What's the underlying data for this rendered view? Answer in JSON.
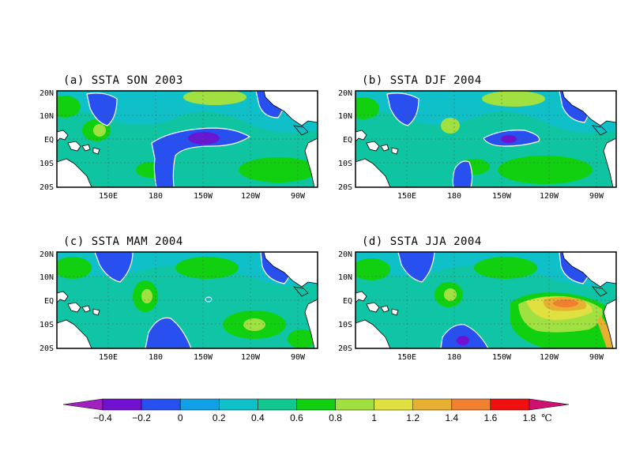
{
  "panels": [
    {
      "title": "(a) SSTA SON 2003",
      "xticks": [
        "150E",
        "180",
        "150W",
        "120W",
        "90W"
      ],
      "yticks": [
        "20N",
        "10N",
        "EQ",
        "10S",
        "20S"
      ]
    },
    {
      "title": "(b) SSTA DJF 2004",
      "xticks": [
        "150E",
        "180",
        "150W",
        "120W",
        "90W"
      ],
      "yticks": [
        "20N",
        "10N",
        "EQ",
        "10S",
        "20S"
      ]
    },
    {
      "title": "(c) SSTA MAM 2004",
      "xticks": [
        "150E",
        "180",
        "150W",
        "120W",
        "90W"
      ],
      "yticks": [
        "20N",
        "10N",
        "EQ",
        "10S",
        "20S"
      ]
    },
    {
      "title": "(d) SSTA JJA 2004",
      "xticks": [
        "150E",
        "180",
        "150W",
        "120W",
        "90W"
      ],
      "yticks": [
        "20N",
        "10N",
        "EQ",
        "10S",
        "20S"
      ]
    }
  ],
  "colorbar": {
    "labels": [
      "-0.4",
      "-0.2",
      "0",
      "0.2",
      "0.4",
      "0.6",
      "0.8",
      "1",
      "1.2",
      "1.4",
      "1.6",
      "1.8"
    ],
    "unit": "℃",
    "colors": {
      "below": "#a020c0",
      "bins": [
        "#7010d0",
        "#2850f0",
        "#10a0e8",
        "#10c0c8",
        "#10c890",
        "#10d010",
        "#a0e040",
        "#e0e040",
        "#e8b030",
        "#f08030",
        "#f01010"
      ],
      "above": "#d01070"
    }
  },
  "palette": {
    "land": "#ffffff",
    "coast": "#000000",
    "contour": "#ffffff"
  }
}
